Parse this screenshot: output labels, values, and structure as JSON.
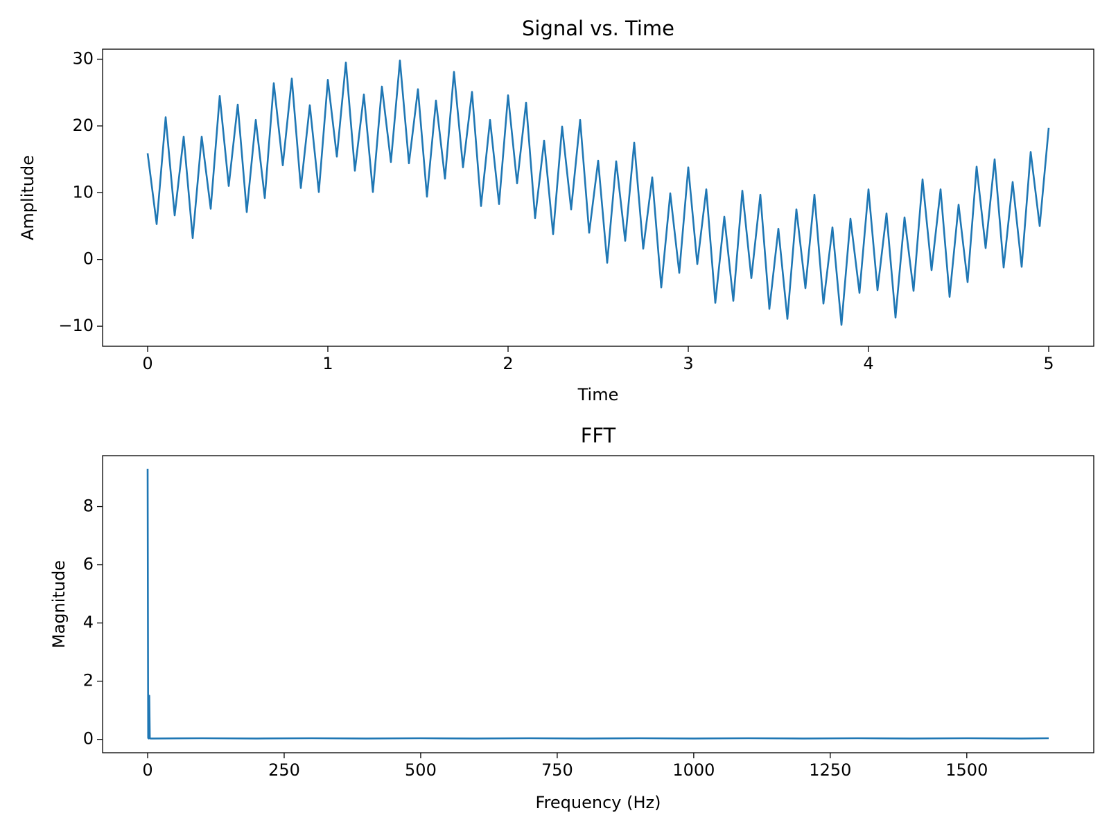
{
  "chart_data": [
    {
      "type": "line",
      "title": "Signal vs. Time",
      "xlabel": "Time",
      "ylabel": "Amplitude",
      "xlim": [
        -0.25,
        5.25
      ],
      "ylim": [
        -13,
        31.5
      ],
      "xticks": [
        0,
        1,
        2,
        3,
        4,
        5
      ],
      "yticks": [
        {
          "value": -10,
          "label": "−10"
        },
        0,
        10,
        20,
        30
      ],
      "grid": false,
      "x": [
        0,
        0.05,
        0.1,
        0.15,
        0.2,
        0.25,
        0.3,
        0.35,
        0.4,
        0.45,
        0.5,
        0.55,
        0.6,
        0.65,
        0.7,
        0.75,
        0.8,
        0.85,
        0.9,
        0.95,
        1,
        1.05,
        1.1,
        1.15,
        1.2,
        1.25,
        1.3,
        1.35,
        1.4,
        1.45,
        1.5,
        1.55,
        1.6,
        1.65,
        1.7,
        1.75,
        1.8,
        1.85,
        1.9,
        1.95,
        2,
        2.05,
        2.1,
        2.15,
        2.2,
        2.25,
        2.3,
        2.35,
        2.4,
        2.45,
        2.5,
        2.55,
        2.6,
        2.65,
        2.7,
        2.75,
        2.8,
        2.85,
        2.9,
        2.95,
        3,
        3.05,
        3.1,
        3.15,
        3.2,
        3.25,
        3.3,
        3.35,
        3.4,
        3.45,
        3.5,
        3.55,
        3.6,
        3.65,
        3.7,
        3.75,
        3.8,
        3.85,
        3.9,
        3.95,
        4,
        4.05,
        4.1,
        4.15,
        4.2,
        4.25,
        4.3,
        4.35,
        4.4,
        4.45,
        4.5,
        4.55,
        4.6,
        4.65,
        4.7,
        4.75,
        4.8,
        4.85,
        4.9,
        4.95,
        5
      ],
      "series": [
        {
          "color": "#1f77b4",
          "values": [
            15.9,
            5.3,
            21.3,
            6.6,
            18.4,
            3.2,
            18.4,
            7.6,
            24.5,
            11.0,
            23.2,
            7.1,
            20.9,
            9.2,
            26.4,
            14.1,
            27.1,
            10.7,
            23.1,
            10.1,
            26.9,
            15.4,
            29.5,
            13.3,
            24.7,
            10.1,
            25.9,
            14.6,
            29.8,
            14.4,
            25.5,
            9.4,
            23.8,
            12.1,
            28.1,
            13.8,
            25.1,
            8.0,
            20.9,
            8.3,
            24.6,
            11.4,
            23.5,
            6.2,
            17.8,
            3.8,
            19.9,
            7.5,
            20.9,
            4.0,
            14.8,
            -0.5,
            14.7,
            2.8,
            17.5,
            1.6,
            12.3,
            -4.2,
            9.9,
            -2.0,
            13.8,
            -0.7,
            10.5,
            -6.5,
            6.4,
            -6.2,
            10.3,
            -2.8,
            9.7,
            -7.4,
            4.6,
            -8.9,
            7.5,
            -4.3,
            9.7,
            -6.6,
            4.8,
            -9.8,
            6.1,
            -5.0,
            10.5,
            -4.6,
            6.9,
            -8.7,
            6.3,
            -4.7,
            12.0,
            -1.6,
            10.5,
            -5.6,
            8.2,
            -3.4,
            13.9,
            1.7,
            15.0,
            -1.2,
            11.6,
            -1.1,
            16.1,
            5.0,
            19.7
          ]
        }
      ]
    },
    {
      "type": "line",
      "title": "FFT",
      "xlabel": "Frequency (Hz)",
      "ylabel": "Magnitude",
      "xlim": [
        -82.5,
        1732.5
      ],
      "ylim": [
        -0.46,
        9.75
      ],
      "xticks": [
        0,
        250,
        500,
        750,
        1000,
        1250,
        1500
      ],
      "yticks": [
        0,
        2,
        4,
        6,
        8
      ],
      "grid": false,
      "x": [
        0,
        1,
        2,
        3,
        4,
        5,
        10,
        100,
        200,
        300,
        400,
        500,
        600,
        700,
        800,
        900,
        1000,
        1100,
        1200,
        1300,
        1400,
        1500,
        1600,
        1650
      ],
      "series": [
        {
          "color": "#1f77b4",
          "values": [
            9.3,
            0.05,
            0.03,
            1.5,
            0.04,
            0.03,
            0.03,
            0.04,
            0.03,
            0.04,
            0.03,
            0.04,
            0.03,
            0.04,
            0.03,
            0.04,
            0.03,
            0.04,
            0.03,
            0.04,
            0.03,
            0.04,
            0.03,
            0.04
          ]
        }
      ]
    }
  ]
}
